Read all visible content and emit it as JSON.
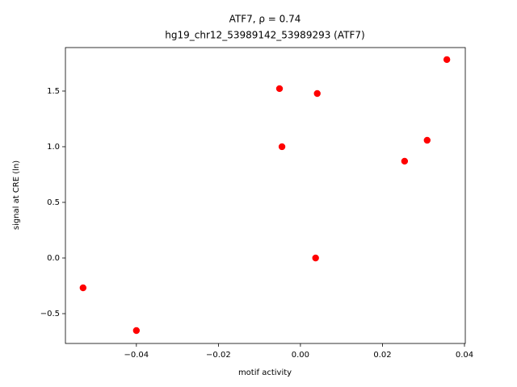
{
  "chart_data": {
    "type": "scatter",
    "title": "ATF7, ρ = 0.74",
    "subtitle": "hg19_chr12_53989142_53989293 (ATF7)",
    "x_label": "motif activity",
    "y_label": "signal at CRE (ln)",
    "color": "#ff0000",
    "x": [
      -0.053,
      -0.04,
      -0.0051,
      -0.0045,
      0.0037,
      0.0041,
      0.0254,
      0.0309,
      0.0357
    ],
    "values": [
      -0.268,
      -0.652,
      1.522,
      1.0,
      0.0,
      1.478,
      0.87,
      1.058,
      1.783
    ],
    "xlim": [
      -0.0573,
      0.0402
    ],
    "ylim": [
      -0.768,
      1.891
    ],
    "xticks": [
      {
        "value": -0.04,
        "label": "−0.04"
      },
      {
        "value": -0.02,
        "label": "−0.02"
      },
      {
        "value": 0,
        "label": "0.00"
      },
      0.02,
      0.04
    ],
    "yticks": [
      {
        "value": -0.5,
        "label": "−0.5"
      },
      {
        "value": 0,
        "label": "0.0"
      },
      0.5,
      {
        "value": 1,
        "label": "1.0"
      },
      1.5
    ]
  }
}
